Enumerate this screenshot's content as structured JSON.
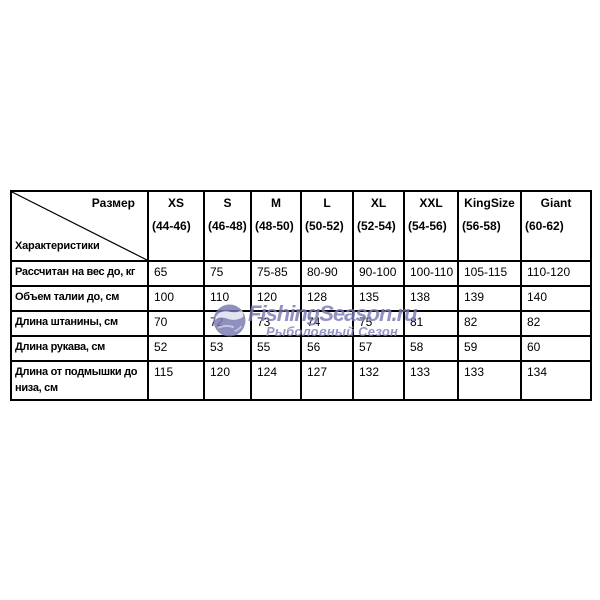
{
  "chart_data": {
    "type": "table",
    "corner": {
      "top_right_label": "Размер",
      "bottom_left_label": "Характеристики"
    },
    "columns": [
      {
        "size": "XS",
        "range": "(44-46)"
      },
      {
        "size": "S",
        "range": "(46-48)"
      },
      {
        "size": "M",
        "range": "(48-50)"
      },
      {
        "size": "L",
        "range": "(50-52)"
      },
      {
        "size": "XL",
        "range": "(52-54)"
      },
      {
        "size": "XXL",
        "range": "(54-56)"
      },
      {
        "size": "KingSize",
        "range": "(56-58)"
      },
      {
        "size": "Giant",
        "range": "(60-62)"
      }
    ],
    "rows": [
      {
        "label": "Рассчитан на вес до, кг",
        "values": [
          "65",
          "75",
          "75-85",
          "80-90",
          "90-100",
          "100-110",
          "105-115",
          "110-120"
        ]
      },
      {
        "label": "Объем талии до, см",
        "values": [
          "100",
          "110",
          "120",
          "128",
          "135",
          "138",
          "139",
          "140"
        ]
      },
      {
        "label": "Длина штанины, см",
        "values": [
          "70",
          "72",
          "73",
          "74",
          "75",
          "81",
          "82",
          "82"
        ]
      },
      {
        "label": "Длина рукава, см",
        "values": [
          "52",
          "53",
          "55",
          "56",
          "57",
          "58",
          "59",
          "60"
        ]
      },
      {
        "label": "Длина от подмышки до низа, см",
        "values": [
          "115",
          "120",
          "124",
          "127",
          "132",
          "133",
          "133",
          "134"
        ]
      }
    ]
  },
  "watermark": {
    "brand": "FishingSeason.ru",
    "subtitle": "Рыболовный Сезон",
    "color": "#7b7bb5"
  }
}
